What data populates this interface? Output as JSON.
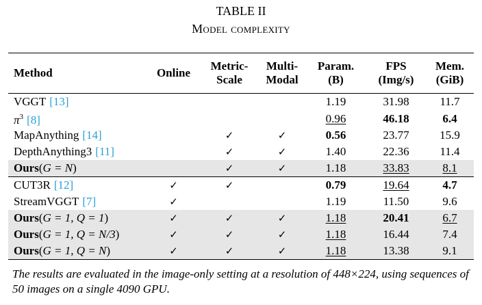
{
  "table": {
    "title": "TABLE II",
    "subtitle": "Model complexity",
    "headers": [
      [
        "Method"
      ],
      [
        "Online"
      ],
      [
        "Metric-",
        "Scale"
      ],
      [
        "Multi-",
        "Modal"
      ],
      [
        "Param.",
        "(B)"
      ],
      [
        "FPS",
        "(Img/s)"
      ],
      [
        "Mem.",
        "(GiB)"
      ]
    ],
    "groups": [
      [
        {
          "shaded": false,
          "method": [
            {
              "text": "VGGT"
            },
            {
              "text": "[13]",
              "cite": true
            }
          ],
          "cells": [
            null,
            null,
            null,
            {
              "text": "1.19"
            },
            {
              "text": "31.98"
            },
            {
              "text": "11.7"
            }
          ]
        },
        {
          "shaded": false,
          "method": [
            {
              "text": "π",
              "math": true
            },
            {
              "text": "3",
              "sup": true
            },
            {
              "text": "[8]",
              "cite": true
            }
          ],
          "cells": [
            null,
            null,
            null,
            {
              "text": "0.96",
              "underline": true
            },
            {
              "text": "46.18",
              "bold": true
            },
            {
              "text": "6.4",
              "bold": true
            }
          ]
        },
        {
          "shaded": false,
          "method": [
            {
              "text": "MapAnything"
            },
            {
              "text": "[14]",
              "cite": true
            }
          ],
          "cells": [
            null,
            {
              "text": "✓"
            },
            {
              "text": "✓"
            },
            {
              "text": "0.56",
              "bold": true
            },
            {
              "text": "23.77"
            },
            {
              "text": "15.9"
            }
          ]
        },
        {
          "shaded": false,
          "method": [
            {
              "text": "DepthAnything3"
            },
            {
              "text": "[11]",
              "cite": true
            }
          ],
          "cells": [
            null,
            {
              "text": "✓"
            },
            {
              "text": "✓"
            },
            {
              "text": "1.40"
            },
            {
              "text": "22.36"
            },
            {
              "text": "11.4"
            }
          ]
        },
        {
          "shaded": true,
          "method": [
            {
              "text": "Ours",
              "bold": true
            },
            {
              "text": "("
            },
            {
              "text": "G = N",
              "math": true
            },
            {
              "text": ")"
            }
          ],
          "cells": [
            null,
            {
              "text": "✓"
            },
            {
              "text": "✓"
            },
            {
              "text": "1.18"
            },
            {
              "text": "33.83",
              "underline": true
            },
            {
              "text": "8.1",
              "underline": true
            }
          ]
        }
      ],
      [
        {
          "shaded": false,
          "method": [
            {
              "text": "CUT3R"
            },
            {
              "text": "[12]",
              "cite": true
            }
          ],
          "cells": [
            {
              "text": "✓"
            },
            {
              "text": "✓"
            },
            null,
            {
              "text": "0.79",
              "bold": true
            },
            {
              "text": "19.64",
              "underline": true
            },
            {
              "text": "4.7",
              "bold": true
            }
          ]
        },
        {
          "shaded": false,
          "method": [
            {
              "text": "StreamVGGT"
            },
            {
              "text": "[7]",
              "cite": true
            }
          ],
          "cells": [
            {
              "text": "✓"
            },
            null,
            null,
            {
              "text": "1.19"
            },
            {
              "text": "11.50"
            },
            {
              "text": "9.6"
            }
          ]
        },
        {
          "shaded": true,
          "method": [
            {
              "text": "Ours",
              "bold": true
            },
            {
              "text": "("
            },
            {
              "text": "G = 1, Q = 1",
              "math": true
            },
            {
              "text": ")"
            }
          ],
          "cells": [
            {
              "text": "✓"
            },
            {
              "text": "✓"
            },
            {
              "text": "✓"
            },
            {
              "text": "1.18",
              "underline": true
            },
            {
              "text": "20.41",
              "bold": true
            },
            {
              "text": "6.7",
              "underline": true
            }
          ]
        },
        {
          "shaded": true,
          "method": [
            {
              "text": "Ours",
              "bold": true
            },
            {
              "text": "("
            },
            {
              "text": "G = 1, Q = N/3",
              "math": true
            },
            {
              "text": ")"
            }
          ],
          "cells": [
            {
              "text": "✓"
            },
            {
              "text": "✓"
            },
            {
              "text": "✓"
            },
            {
              "text": "1.18",
              "underline": true
            },
            {
              "text": "16.44"
            },
            {
              "text": "7.4"
            }
          ]
        },
        {
          "shaded": true,
          "method": [
            {
              "text": "Ours",
              "bold": true
            },
            {
              "text": "("
            },
            {
              "text": "G = 1, Q = N",
              "math": true
            },
            {
              "text": ")"
            }
          ],
          "cells": [
            {
              "text": "✓"
            },
            {
              "text": "✓"
            },
            {
              "text": "✓"
            },
            {
              "text": "1.18",
              "underline": true
            },
            {
              "text": "13.38"
            },
            {
              "text": "9.1"
            }
          ]
        }
      ]
    ],
    "caption": "The results are evaluated in the image-only setting at a resolution of 448×224, using sequences of 50 images on a single 4090 GPU."
  }
}
